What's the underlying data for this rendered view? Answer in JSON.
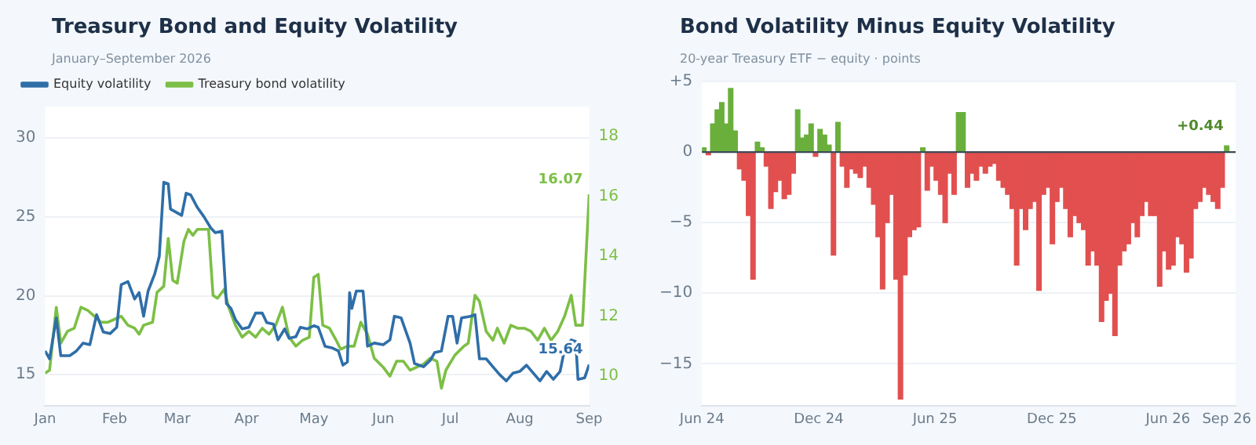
{
  "chart_data": [
    {
      "type": "line",
      "title": "Treasury Bond and Equity Volatility",
      "subtitle": "January–September 2026",
      "xlim": [
        "2026-01-01",
        "2026-09-01"
      ],
      "xticks": [
        {
          "value": "2026-01-01",
          "label": "Jan"
        },
        {
          "value": "2026-02-01",
          "label": "Feb"
        },
        {
          "value": "2026-03-01",
          "label": "Mar"
        },
        {
          "value": "2026-04-01",
          "label": "Apr"
        },
        {
          "value": "2026-05-01",
          "label": "May"
        },
        {
          "value": "2026-06-01",
          "label": "Jun"
        },
        {
          "value": "2026-07-01",
          "label": "Jul"
        },
        {
          "value": "2026-08-01",
          "label": "Aug"
        },
        {
          "value": "2026-09-01",
          "label": "Sep"
        }
      ],
      "ylim": [
        13,
        32
      ],
      "yticks": [
        15,
        20,
        25,
        30
      ],
      "y2lim": [
        9,
        19
      ],
      "y2ticks": [
        10,
        12,
        14,
        16,
        18
      ],
      "grid": "y",
      "legend": "top left",
      "marker": "none",
      "line_style": "solid",
      "series": [
        {
          "name": "Equity volatility",
          "color": "#2f6ea8",
          "x": [
            "2026-01-01",
            "2026-01-03",
            "2026-01-06",
            "2026-01-08",
            "2026-01-12",
            "2026-01-15",
            "2026-01-18",
            "2026-01-21",
            "2026-01-24",
            "2026-01-27",
            "2026-01-30",
            "2026-02-02",
            "2026-02-04",
            "2026-02-07",
            "2026-02-10",
            "2026-02-12",
            "2026-02-14",
            "2026-02-16",
            "2026-02-19",
            "2026-02-21",
            "2026-02-23",
            "2026-02-25",
            "2026-02-26",
            "2026-03-03",
            "2026-03-05",
            "2026-03-07",
            "2026-03-10",
            "2026-03-13",
            "2026-03-16",
            "2026-03-18",
            "2026-03-21",
            "2026-03-23",
            "2026-03-25",
            "2026-03-27",
            "2026-03-30",
            "2026-04-02",
            "2026-04-05",
            "2026-04-08",
            "2026-04-10",
            "2026-04-13",
            "2026-04-15",
            "2026-04-18",
            "2026-04-20",
            "2026-04-23",
            "2026-04-25",
            "2026-04-28",
            "2026-05-01",
            "2026-05-03",
            "2026-05-06",
            "2026-05-09",
            "2026-05-12",
            "2026-05-14",
            "2026-05-16",
            "2026-05-17",
            "2026-05-18",
            "2026-05-20",
            "2026-05-23",
            "2026-05-25",
            "2026-05-28",
            "2026-06-01",
            "2026-06-04",
            "2026-06-06",
            "2026-06-09",
            "2026-06-11",
            "2026-06-13",
            "2026-06-15",
            "2026-06-19",
            "2026-06-22",
            "2026-06-24",
            "2026-06-27",
            "2026-06-30",
            "2026-07-02",
            "2026-07-04",
            "2026-07-06",
            "2026-07-10",
            "2026-07-12",
            "2026-07-14",
            "2026-07-17",
            "2026-07-20",
            "2026-07-23",
            "2026-07-26",
            "2026-07-29",
            "2026-08-01",
            "2026-08-04",
            "2026-08-07",
            "2026-08-10",
            "2026-08-13",
            "2026-08-16",
            "2026-08-19",
            "2026-08-21",
            "2026-08-24",
            "2026-08-26",
            "2026-08-27",
            "2026-08-30",
            "2026-09-01"
          ],
          "values": [
            16.5,
            16.0,
            18.6,
            16.2,
            16.2,
            16.5,
            17.0,
            16.9,
            18.8,
            17.7,
            17.6,
            18.0,
            20.7,
            20.9,
            19.8,
            20.2,
            18.7,
            20.3,
            21.4,
            22.5,
            27.2,
            27.1,
            25.5,
            25.1,
            26.5,
            26.4,
            25.6,
            25.0,
            24.3,
            24.0,
            24.1,
            19.5,
            19.2,
            18.5,
            17.9,
            18.0,
            18.9,
            18.9,
            18.3,
            18.2,
            17.2,
            17.9,
            17.3,
            17.4,
            18.0,
            17.9,
            18.1,
            18.0,
            16.8,
            16.7,
            16.5,
            15.6,
            15.8,
            20.2,
            19.2,
            20.3,
            20.3,
            16.8,
            17.0,
            16.9,
            17.2,
            18.7,
            18.6,
            17.8,
            17.0,
            15.7,
            15.5,
            15.9,
            16.4,
            16.5,
            18.7,
            18.7,
            17.0,
            18.6,
            18.7,
            18.8,
            16.0,
            16.0,
            15.5,
            15.0,
            14.6,
            15.1,
            15.2,
            15.6,
            15.1,
            14.6,
            15.2,
            14.7,
            15.2,
            16.6,
            17.2,
            17.1,
            14.7,
            14.8,
            15.64
          ],
          "value_labels": [
            null,
            null,
            null,
            null,
            null,
            null,
            null,
            null,
            null,
            null,
            null,
            null,
            null,
            null,
            null,
            null,
            null,
            null,
            null,
            null,
            null,
            null,
            null,
            null,
            null,
            null,
            null,
            null,
            null,
            null,
            null,
            null,
            null,
            null,
            null,
            null,
            null,
            null,
            null,
            null,
            null,
            null,
            null,
            null,
            null,
            null,
            null,
            null,
            null,
            null,
            null,
            null,
            null,
            null,
            null,
            null,
            null,
            null,
            null,
            null,
            null,
            null,
            null,
            null,
            null,
            null,
            null,
            null,
            null,
            null,
            null,
            null,
            null,
            null,
            null,
            null,
            null,
            null,
            null,
            null,
            null,
            null,
            null,
            null,
            null,
            null,
            null,
            null,
            null,
            null,
            null,
            null,
            null,
            null,
            "15.64"
          ]
        },
        {
          "name": "Treasury bond volatility",
          "color": "#7cbf45",
          "axis": "y2",
          "x": [
            "2026-01-01",
            "2026-01-03",
            "2026-01-06",
            "2026-01-08",
            "2026-01-11",
            "2026-01-14",
            "2026-01-17",
            "2026-01-20",
            "2026-01-23",
            "2026-01-26",
            "2026-01-29",
            "2026-02-01",
            "2026-02-04",
            "2026-02-07",
            "2026-02-10",
            "2026-02-12",
            "2026-02-14",
            "2026-02-18",
            "2026-02-20",
            "2026-02-23",
            "2026-02-25",
            "2026-02-27",
            "2026-03-01",
            "2026-03-04",
            "2026-03-06",
            "2026-03-08",
            "2026-03-10",
            "2026-03-13",
            "2026-03-15",
            "2026-03-17",
            "2026-03-19",
            "2026-03-22",
            "2026-03-24",
            "2026-03-27",
            "2026-03-30",
            "2026-04-02",
            "2026-04-05",
            "2026-04-08",
            "2026-04-11",
            "2026-04-14",
            "2026-04-17",
            "2026-04-20",
            "2026-04-23",
            "2026-04-26",
            "2026-04-29",
            "2026-05-01",
            "2026-05-03",
            "2026-05-05",
            "2026-05-08",
            "2026-05-11",
            "2026-05-13",
            "2026-05-16",
            "2026-05-19",
            "2026-05-22",
            "2026-05-25",
            "2026-05-28",
            "2026-06-01",
            "2026-06-04",
            "2026-06-07",
            "2026-06-10",
            "2026-06-13",
            "2026-06-16",
            "2026-06-19",
            "2026-06-22",
            "2026-06-25",
            "2026-06-27",
            "2026-06-29",
            "2026-07-03",
            "2026-07-07",
            "2026-07-09",
            "2026-07-12",
            "2026-07-14",
            "2026-07-17",
            "2026-07-20",
            "2026-07-22",
            "2026-07-25",
            "2026-07-28",
            "2026-07-31",
            "2026-08-03",
            "2026-08-06",
            "2026-08-09",
            "2026-08-12",
            "2026-08-15",
            "2026-08-18",
            "2026-08-21",
            "2026-08-24",
            "2026-08-26",
            "2026-08-29",
            "2026-09-01"
          ],
          "values": [
            10.1,
            10.2,
            12.3,
            11.1,
            11.5,
            11.6,
            12.3,
            12.2,
            12.0,
            11.8,
            11.8,
            11.9,
            12.0,
            11.7,
            11.6,
            11.4,
            11.7,
            11.8,
            12.8,
            13.0,
            14.6,
            13.2,
            13.1,
            14.5,
            14.9,
            14.7,
            14.9,
            14.9,
            14.9,
            12.7,
            12.6,
            12.9,
            12.3,
            11.7,
            11.3,
            11.5,
            11.3,
            11.6,
            11.4,
            11.7,
            12.3,
            11.3,
            11.0,
            11.2,
            11.3,
            13.3,
            13.4,
            11.7,
            11.6,
            11.2,
            10.9,
            11.0,
            11.0,
            11.8,
            11.4,
            10.6,
            10.3,
            10.0,
            10.5,
            10.5,
            10.2,
            10.3,
            10.4,
            10.6,
            10.5,
            9.6,
            10.2,
            10.7,
            11.0,
            11.1,
            12.7,
            12.5,
            11.5,
            11.2,
            11.6,
            11.1,
            11.7,
            11.6,
            11.6,
            11.5,
            11.2,
            11.6,
            11.2,
            11.5,
            12.0,
            12.7,
            11.7,
            11.7,
            16.07
          ],
          "value_labels": [
            null,
            null,
            null,
            null,
            null,
            null,
            null,
            null,
            null,
            null,
            null,
            null,
            null,
            null,
            null,
            null,
            null,
            null,
            null,
            null,
            null,
            null,
            null,
            null,
            null,
            null,
            null,
            null,
            null,
            null,
            null,
            null,
            null,
            null,
            null,
            null,
            null,
            null,
            null,
            null,
            null,
            null,
            null,
            null,
            null,
            null,
            null,
            null,
            null,
            null,
            null,
            null,
            null,
            null,
            null,
            null,
            null,
            null,
            null,
            null,
            null,
            null,
            null,
            null,
            null,
            null,
            null,
            null,
            null,
            null,
            null,
            null,
            null,
            null,
            null,
            null,
            null,
            null,
            null,
            null,
            null,
            null,
            null,
            null,
            null,
            null,
            null,
            null,
            "16.07"
          ]
        }
      ]
    },
    {
      "type": "bar",
      "title": "Bond Volatility Minus Equity Volatility",
      "subtitle": "20-year Treasury ETF − equity · points",
      "xlim": [
        "2024-06-01",
        "2026-09-15"
      ],
      "xticks": [
        {
          "value": "2024-06-01",
          "label": "Jun 24"
        },
        {
          "value": "2024-12-01",
          "label": "Dec 24"
        },
        {
          "value": "2025-06-01",
          "label": "Jun 25"
        },
        {
          "value": "2025-12-01",
          "label": "Dec 25"
        },
        {
          "value": "2026-06-01",
          "label": "Jun 26"
        },
        {
          "value": "2026-09-01",
          "label": "Sep 26"
        }
      ],
      "ylim": [
        -18,
        5
      ],
      "yticks": [
        {
          "value": 5,
          "label": "+5"
        },
        0,
        {
          "value": -5,
          "label": "−5"
        },
        {
          "value": -10,
          "label": "−10"
        },
        {
          "value": -15,
          "label": "−15"
        }
      ],
      "grid": "y",
      "ref_lines": [
        {
          "axis": "y",
          "value": 0,
          "color": "#3d4b58"
        }
      ],
      "annotations": [
        {
          "text": "+0.44",
          "x": "2026-09-01",
          "y": 0.44
        }
      ],
      "x": [
        "2024-06-04",
        "2024-06-11",
        "2024-06-18",
        "2024-06-25",
        "2024-07-02",
        "2024-07-09",
        "2024-07-16",
        "2024-07-23",
        "2024-07-30",
        "2024-08-06",
        "2024-08-13",
        "2024-08-20",
        "2024-08-27",
        "2024-09-03",
        "2024-09-10",
        "2024-09-17",
        "2024-09-24",
        "2024-10-01",
        "2024-10-08",
        "2024-10-15",
        "2024-10-22",
        "2024-10-29",
        "2024-11-05",
        "2024-11-12",
        "2024-11-19",
        "2024-11-26",
        "2024-12-03",
        "2024-12-10",
        "2024-12-17",
        "2024-12-24",
        "2024-12-31",
        "2025-01-07",
        "2025-01-14",
        "2025-01-21",
        "2025-01-28",
        "2025-02-04",
        "2025-02-11",
        "2025-02-18",
        "2025-02-25",
        "2025-03-04",
        "2025-03-11",
        "2025-03-18",
        "2025-03-25",
        "2025-04-01",
        "2025-04-08",
        "2025-04-15",
        "2025-04-22",
        "2025-04-29",
        "2025-05-06",
        "2025-05-13",
        "2025-05-20",
        "2025-05-27",
        "2025-06-03",
        "2025-06-10",
        "2025-06-17",
        "2025-06-24",
        "2025-07-01",
        "2025-07-08",
        "2025-07-15",
        "2025-07-22",
        "2025-07-29",
        "2025-08-05",
        "2025-08-12",
        "2025-08-19",
        "2025-08-26",
        "2025-09-02",
        "2025-09-09",
        "2025-09-16",
        "2025-09-23",
        "2025-09-30",
        "2025-10-07",
        "2025-10-14",
        "2025-10-21",
        "2025-10-28",
        "2025-11-04",
        "2025-11-11",
        "2025-11-18",
        "2025-11-25",
        "2025-12-02",
        "2025-12-09",
        "2025-12-16",
        "2025-12-23",
        "2025-12-30",
        "2026-01-06",
        "2026-01-13",
        "2026-01-20",
        "2026-01-27",
        "2026-02-03",
        "2026-02-10",
        "2026-02-17",
        "2026-02-24",
        "2026-03-03",
        "2026-03-10",
        "2026-03-17",
        "2026-03-24",
        "2026-03-31",
        "2026-04-07",
        "2026-04-14",
        "2026-04-21",
        "2026-04-28",
        "2026-05-05",
        "2026-05-12",
        "2026-05-19",
        "2026-05-26",
        "2026-06-02",
        "2026-06-09",
        "2026-06-16",
        "2026-06-23",
        "2026-06-30",
        "2026-07-07",
        "2026-07-14",
        "2026-07-21",
        "2026-07-28",
        "2026-08-04",
        "2026-08-11",
        "2026-08-18",
        "2026-08-25",
        "2026-09-01"
      ],
      "values": [
        0.3,
        -0.2,
        2.0,
        3.0,
        3.5,
        2.0,
        4.5,
        1.5,
        -1.2,
        -2.0,
        -4.5,
        -9.0,
        0.7,
        0.3,
        -1.0,
        -4.0,
        -2.8,
        -2.0,
        -3.3,
        -3.0,
        -1.5,
        3.0,
        1.0,
        1.2,
        2.0,
        -0.3,
        1.6,
        1.2,
        0.5,
        -7.3,
        2.1,
        -1.0,
        -2.5,
        -1.2,
        -1.5,
        -1.8,
        -1.0,
        -2.5,
        -3.7,
        -6.0,
        -9.7,
        -5.0,
        -3.0,
        -9.0,
        -17.5,
        -8.7,
        -6.0,
        -5.5,
        -5.3,
        0.3,
        -2.7,
        -1.0,
        -2.0,
        -3.0,
        -5.0,
        -1.5,
        -3.0,
        2.8,
        2.8,
        -2.5,
        -1.5,
        -2.0,
        -1.0,
        -1.5,
        -1.0,
        -0.8,
        -2.0,
        -2.5,
        -3.0,
        -4.0,
        -8.0,
        -4.0,
        -5.5,
        -4.0,
        -3.5,
        -9.8,
        -3.0,
        -2.5,
        -6.5,
        -3.5,
        -2.5,
        -4.0,
        -6.0,
        -4.5,
        -5.0,
        -5.5,
        -8.0,
        -7.0,
        -8.0,
        -12.0,
        -10.5,
        -10.0,
        -13.0,
        -8.0,
        -7.0,
        -6.5,
        -5.0,
        -6.0,
        -4.5,
        -3.5,
        -4.5,
        -4.5,
        -9.5,
        -7.0,
        -8.3,
        -8.0,
        -6.0,
        -6.5,
        -8.5,
        -7.5,
        -4.0,
        -3.5,
        -2.5,
        -3.0,
        -3.5,
        -4.0,
        -2.5,
        0.44
      ],
      "colors": [
        "#6aaf3c",
        "#e24f4f",
        "#6aaf3c",
        "#6aaf3c",
        "#6aaf3c",
        "#6aaf3c",
        "#6aaf3c",
        "#6aaf3c",
        "#e24f4f",
        "#e24f4f",
        "#e24f4f",
        "#e24f4f",
        "#6aaf3c",
        "#6aaf3c",
        "#e24f4f",
        "#e24f4f",
        "#e24f4f",
        "#e24f4f",
        "#e24f4f",
        "#e24f4f",
        "#e24f4f",
        "#6aaf3c",
        "#6aaf3c",
        "#6aaf3c",
        "#6aaf3c",
        "#e24f4f",
        "#6aaf3c",
        "#6aaf3c",
        "#6aaf3c",
        "#e24f4f",
        "#6aaf3c",
        "#e24f4f",
        "#e24f4f",
        "#e24f4f",
        "#e24f4f",
        "#e24f4f",
        "#e24f4f",
        "#e24f4f",
        "#e24f4f",
        "#e24f4f",
        "#e24f4f",
        "#e24f4f",
        "#e24f4f",
        "#e24f4f",
        "#e24f4f",
        "#e24f4f",
        "#e24f4f",
        "#e24f4f",
        "#e24f4f",
        "#6aaf3c",
        "#e24f4f",
        "#e24f4f",
        "#e24f4f",
        "#e24f4f",
        "#e24f4f",
        "#e24f4f",
        "#e24f4f",
        "#6aaf3c",
        "#6aaf3c",
        "#e24f4f",
        "#e24f4f",
        "#e24f4f",
        "#e24f4f",
        "#e24f4f",
        "#e24f4f",
        "#e24f4f",
        "#e24f4f",
        "#e24f4f",
        "#e24f4f",
        "#e24f4f",
        "#e24f4f",
        "#e24f4f",
        "#e24f4f",
        "#e24f4f",
        "#e24f4f",
        "#e24f4f",
        "#e24f4f",
        "#e24f4f",
        "#e24f4f",
        "#e24f4f",
        "#e24f4f",
        "#e24f4f",
        "#e24f4f",
        "#e24f4f",
        "#e24f4f",
        "#e24f4f",
        "#e24f4f",
        "#e24f4f",
        "#e24f4f",
        "#e24f4f",
        "#e24f4f",
        "#e24f4f",
        "#e24f4f",
        "#e24f4f",
        "#e24f4f",
        "#e24f4f",
        "#e24f4f",
        "#e24f4f",
        "#e24f4f",
        "#e24f4f",
        "#e24f4f",
        "#e24f4f",
        "#e24f4f",
        "#e24f4f",
        "#e24f4f",
        "#e24f4f",
        "#e24f4f",
        "#e24f4f",
        "#e24f4f",
        "#e24f4f",
        "#e24f4f",
        "#e24f4f",
        "#e24f4f",
        "#e24f4f",
        "#e24f4f",
        "#e24f4f",
        "#e24f4f",
        "#6aaf3c"
      ]
    }
  ]
}
